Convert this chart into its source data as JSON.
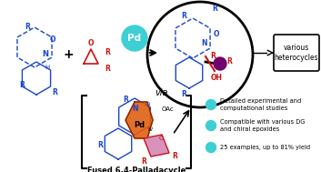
{
  "bg_color": "#ffffff",
  "fig_width": 3.53,
  "fig_height": 1.89,
  "bullet_color": "#3ecfd4",
  "bullet_texts": [
    "Detailed experimental and\ncomputational studies",
    "Compatible with various DG\nand chiral epoxides",
    "25 examples, up to 81% yield"
  ],
  "various_box_text": "various\nheterocycles",
  "via_text": "via",
  "fused_text": "Fused 6,4-Palladacycle",
  "arrow_color": "#000000",
  "blue_color": "#1a44cc",
  "red_color": "#cc1111",
  "orange_fill": "#e06010",
  "pink_fill": "#d080b0",
  "purple_dot": "#700070"
}
